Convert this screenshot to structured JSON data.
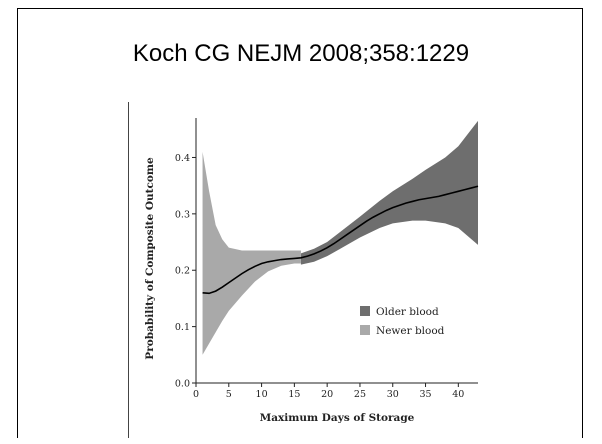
{
  "slide": {
    "title": "Koch CG NEJM 2008;358:1229"
  },
  "chart_data": {
    "type": "line",
    "xlabel": "Maximum Days of Storage",
    "ylabel": "Probability of Composite Outcome",
    "xlim": [
      0,
      43
    ],
    "ylim": [
      0,
      0.47
    ],
    "x_ticks": [
      0,
      5,
      10,
      15,
      20,
      25,
      30,
      35,
      40
    ],
    "y_ticks": [
      0.0,
      0.1,
      0.2,
      0.3,
      0.4
    ],
    "y_tick_labels": [
      "0.0",
      "0.1",
      "0.2",
      "0.3",
      "0.4"
    ],
    "legend_position": "lower-right",
    "colors": {
      "older": "#6e6e6e",
      "newer": "#a9a9a9",
      "line": "#000000"
    },
    "series": [
      {
        "name": "Older blood",
        "x": [
          16,
          18,
          20,
          22,
          25,
          28,
          30,
          33,
          35,
          38,
          40,
          43
        ],
        "lower": [
          0.21,
          0.215,
          0.225,
          0.238,
          0.258,
          0.275,
          0.283,
          0.288,
          0.288,
          0.283,
          0.275,
          0.245
        ],
        "upper": [
          0.23,
          0.238,
          0.25,
          0.268,
          0.295,
          0.323,
          0.34,
          0.362,
          0.378,
          0.4,
          0.42,
          0.465
        ]
      },
      {
        "name": "Newer blood",
        "x": [
          1,
          2,
          3,
          4,
          5,
          7,
          9,
          11,
          13,
          15,
          16
        ],
        "lower": [
          0.05,
          0.07,
          0.09,
          0.11,
          0.128,
          0.155,
          0.18,
          0.198,
          0.208,
          0.212,
          0.212
        ],
        "upper": [
          0.41,
          0.34,
          0.28,
          0.255,
          0.24,
          0.235,
          0.235,
          0.235,
          0.235,
          0.235,
          0.235
        ]
      }
    ],
    "estimate": {
      "x": [
        1,
        2,
        3,
        4,
        5,
        6,
        7,
        8,
        9,
        10,
        11,
        12,
        13,
        14,
        15,
        16,
        17,
        18,
        19,
        20,
        21,
        22,
        23,
        24,
        25,
        26,
        27,
        28,
        29,
        30,
        31,
        32,
        33,
        34,
        35,
        36,
        37,
        38,
        39,
        40,
        41,
        42,
        43
      ],
      "y": [
        0.16,
        0.159,
        0.163,
        0.17,
        0.178,
        0.186,
        0.194,
        0.201,
        0.207,
        0.212,
        0.215,
        0.217,
        0.219,
        0.22,
        0.221,
        0.222,
        0.225,
        0.229,
        0.234,
        0.24,
        0.247,
        0.255,
        0.263,
        0.271,
        0.279,
        0.287,
        0.294,
        0.3,
        0.306,
        0.311,
        0.315,
        0.319,
        0.322,
        0.325,
        0.327,
        0.329,
        0.331,
        0.334,
        0.337,
        0.34,
        0.343,
        0.346,
        0.349
      ]
    }
  }
}
